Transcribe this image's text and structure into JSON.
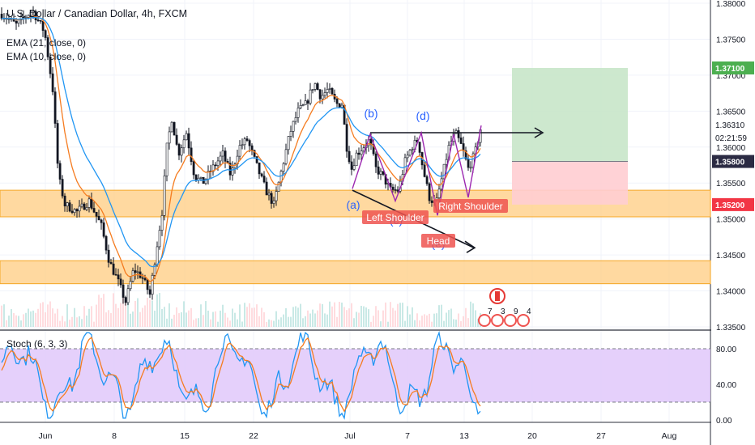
{
  "header": {
    "title": "U.S. Dollar / Canadian Dollar, 4h, FXCM",
    "ema1": "EMA (21, close, 0)",
    "ema2": "EMA (10, close, 0)",
    "stoch": "Stoch (6, 3, 3)"
  },
  "colors": {
    "up_candle": "#131722",
    "zone_fill": "#ffcc80",
    "zone_border": "#f5a623",
    "ema_fast": "#f57c20",
    "ema_slow": "#2196f3",
    "stoch_k": "#2196f3",
    "stoch_d": "#f57c20",
    "stoch_band": "#e1c8fa",
    "target": "#c8e6c9",
    "stop": "#ffcdd2",
    "label_bg": "#ef5350",
    "price_badge_green": "#4caf50",
    "price_badge_red": "#f23645",
    "price_badge_dark": "#2b2b43"
  },
  "chart_data": [
    {
      "type": "candlestick",
      "name": "price",
      "title": "U.S. Dollar / Canadian Dollar, 4h, FXCM",
      "x_tick_labels": [
        "Jun",
        "8",
        "15",
        "22",
        "Jul",
        "7",
        "13",
        "20",
        "27",
        "Aug"
      ],
      "y_tick_labels": [
        "1.38000",
        "1.37500",
        "1.37000",
        "1.36500",
        "1.36310",
        "1.36000",
        "1.35500",
        "1.35000",
        "1.34500",
        "1.34000",
        "1.33500"
      ],
      "ylim": [
        1.335,
        1.38
      ],
      "price_labels": {
        "target": "1.37100",
        "current": "1.36310",
        "countdown": "02:21:59",
        "entry": "1.35800",
        "stop": "1.35200"
      },
      "zones": [
        {
          "from": 1.3503,
          "to": 1.354
        },
        {
          "from": 1.341,
          "to": 1.3442
        }
      ],
      "position": {
        "entry": 1.358,
        "target": 1.371,
        "stop": 1.352
      },
      "pattern_points": [
        "(a)",
        "(b)",
        "(c)",
        "(d)",
        "(e)"
      ],
      "pattern_labels": [
        "Left Shoulder",
        "Head",
        "Right Shoulder"
      ],
      "event_badges": [
        "7",
        "3",
        "9",
        "4"
      ]
    },
    {
      "type": "line",
      "name": "Stoch (6, 3, 3)",
      "y_tick_labels": [
        "80.00",
        "40.00",
        "0.00"
      ],
      "ylim": [
        0,
        100
      ],
      "bands": [
        20,
        80
      ]
    }
  ]
}
